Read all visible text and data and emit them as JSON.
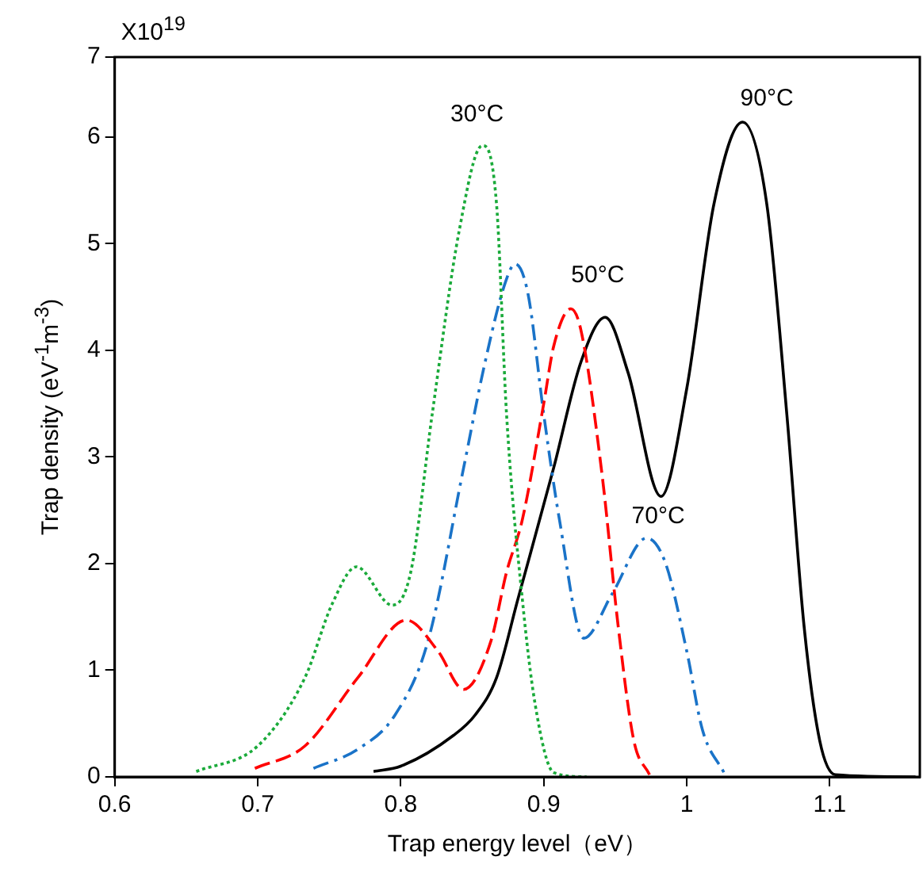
{
  "chart_data": {
    "type": "line",
    "xlabel": "Trap energy level（eV）",
    "ylabel": "Trap density  (eV$^{-1}$m$^{-3}$)",
    "xlim": [
      0.6,
      1.163
    ],
    "xticks": [
      0.6,
      0.7,
      0.8,
      0.9,
      1,
      1.1
    ],
    "ylim": [
      0,
      6.75
    ],
    "yticks": [
      0,
      1,
      2,
      3,
      4,
      5,
      6,
      {
        "value": 6.75,
        "label": "7"
      }
    ],
    "grid": false,
    "legend": false,
    "marker": "none",
    "series": [
      {
        "name": "30°C",
        "color": "#1aaa3a",
        "line_style": "dotted",
        "x": [
          0.657,
          0.7,
          0.733,
          0.752,
          0.769,
          0.794,
          0.807,
          0.822,
          0.841,
          0.857,
          0.867,
          0.874,
          0.885,
          0.894,
          0.907,
          0.93
        ],
        "values": [
          0.05,
          0.29,
          0.93,
          1.62,
          1.97,
          1.61,
          1.92,
          3.4,
          5.13,
          5.92,
          5.37,
          3.4,
          1.67,
          0.68,
          0.04,
          0
        ]
      },
      {
        "name": "50°C",
        "color": "#ff0000",
        "line_style": "dashed",
        "x": [
          0.698,
          0.733,
          0.77,
          0.804,
          0.826,
          0.844,
          0.863,
          0.874,
          0.885,
          0.9,
          0.907,
          0.919,
          0.926,
          0.941,
          0.952,
          0.963,
          0.974
        ],
        "values": [
          0.08,
          0.29,
          0.93,
          1.47,
          1.18,
          0.82,
          1.27,
          1.92,
          2.41,
          3.5,
          4.04,
          4.39,
          4.19,
          2.81,
          1.42,
          0.34,
          0.02
        ]
      },
      {
        "name": "70°C",
        "color": "#1a73c8",
        "line_style": "dashdot",
        "x": [
          0.739,
          0.77,
          0.796,
          0.819,
          0.844,
          0.859,
          0.873,
          0.88,
          0.889,
          0.9,
          0.911,
          0.928,
          0.948,
          0.972,
          0.985,
          1.0,
          1.011,
          1.026
        ],
        "values": [
          0.08,
          0.26,
          0.58,
          1.27,
          2.9,
          3.89,
          4.63,
          4.81,
          4.53,
          3.4,
          2.41,
          1.3,
          1.72,
          2.24,
          2.01,
          1.18,
          0.44,
          0.04
        ]
      },
      {
        "name": "90°C",
        "color": "#000000",
        "line_style": "solid",
        "x": [
          0.781,
          0.8,
          0.837,
          0.852,
          0.867,
          0.882,
          0.907,
          0.926,
          0.943,
          0.959,
          0.982,
          1.0,
          1.019,
          1.039,
          1.056,
          1.07,
          1.082,
          1.093,
          1.104,
          1.16
        ],
        "values": [
          0.05,
          0.1,
          0.39,
          0.58,
          0.93,
          1.67,
          2.9,
          3.89,
          4.31,
          3.79,
          2.63,
          3.64,
          5.37,
          6.14,
          5.37,
          3.4,
          1.42,
          0.34,
          0.02,
          0
        ]
      }
    ],
    "annotations": [
      "X10$^{19}$"
    ]
  }
}
